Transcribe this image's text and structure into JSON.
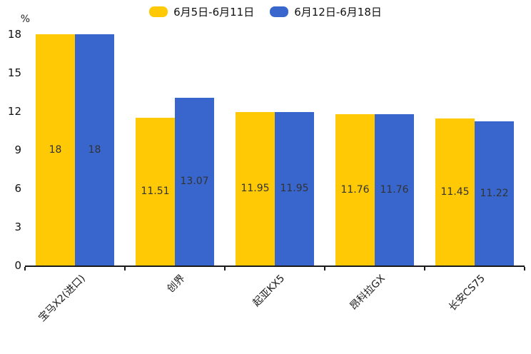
{
  "chart_data": {
    "type": "bar",
    "title": "",
    "unit_label": "%",
    "categories": [
      "宝马X2(进口)",
      "创界",
      "起亚KX5",
      "昂科拉GX",
      "长安CS75"
    ],
    "series": [
      {
        "name": "6月5日-6月11日",
        "color": "#FFC905",
        "values": [
          18,
          11.51,
          11.95,
          11.76,
          11.45
        ]
      },
      {
        "name": "6月12日-6月18日",
        "color": "#3866CD",
        "values": [
          18,
          13.07,
          11.95,
          11.76,
          11.22
        ]
      }
    ],
    "ylim": [
      0,
      18
    ],
    "yticks": [
      0,
      3,
      6,
      9,
      12,
      15,
      18
    ],
    "grid": false,
    "legend_position": "top",
    "value_label_position": "inside-center",
    "axis_color": "#1a1a1a",
    "value_label_color": "#333333"
  }
}
